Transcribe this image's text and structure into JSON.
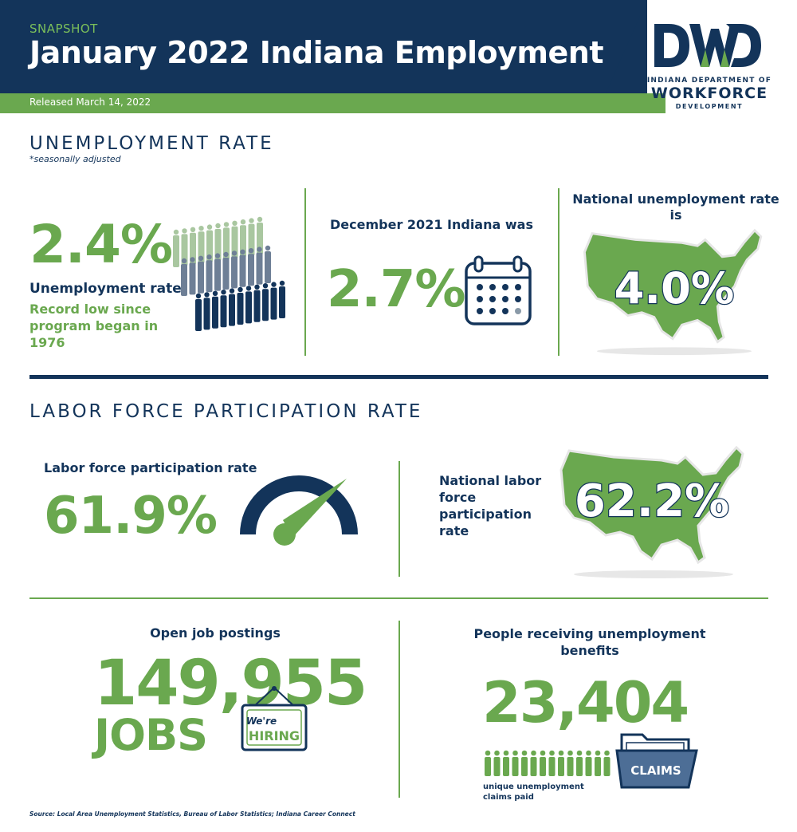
{
  "header": {
    "eyebrow": "SNAPSHOT",
    "title": "January 2022 Indiana Employment",
    "release": "Released March 14, 2022"
  },
  "logo": {
    "letters": "DWD",
    "line1": "INDIANA DEPARTMENT OF",
    "line2": "WORKFORCE",
    "line3": "DEVELOPMENT"
  },
  "unemployment": {
    "title": "UNEMPLOYMENT RATE",
    "note": "*seasonally adjusted",
    "rate": "2.4%",
    "rate_label": "Unemployment rate",
    "record_note": "Record low since program began in 1976",
    "december_label": "December 2021 Indiana was",
    "december_rate": "2.7%",
    "national_label": "National unemployment rate is",
    "national_rate": "4.0%"
  },
  "lfpr": {
    "title": "LABOR FORCE PARTICIPATION RATE",
    "label": "Labor force participation rate",
    "rate": "61.9%",
    "national_label": "National labor force participation rate",
    "national_rate": "62.2%"
  },
  "jobs": {
    "label": "Open job postings",
    "count": "149,955",
    "unit": "JOBS",
    "sign_top": "We're",
    "sign_bottom": "HIRING"
  },
  "benefits": {
    "label": "People receiving unemployment benefits",
    "count": "23,404",
    "folder_label": "CLAIMS",
    "note": "unique unemployment claims paid"
  },
  "source": "Source: Local Area Unemployment Statistics, Bureau of Labor Statistics; Indiana Career Connect",
  "colors": {
    "navy": "#13345a",
    "green": "#6aa84f",
    "light_green": "#9cc788"
  }
}
